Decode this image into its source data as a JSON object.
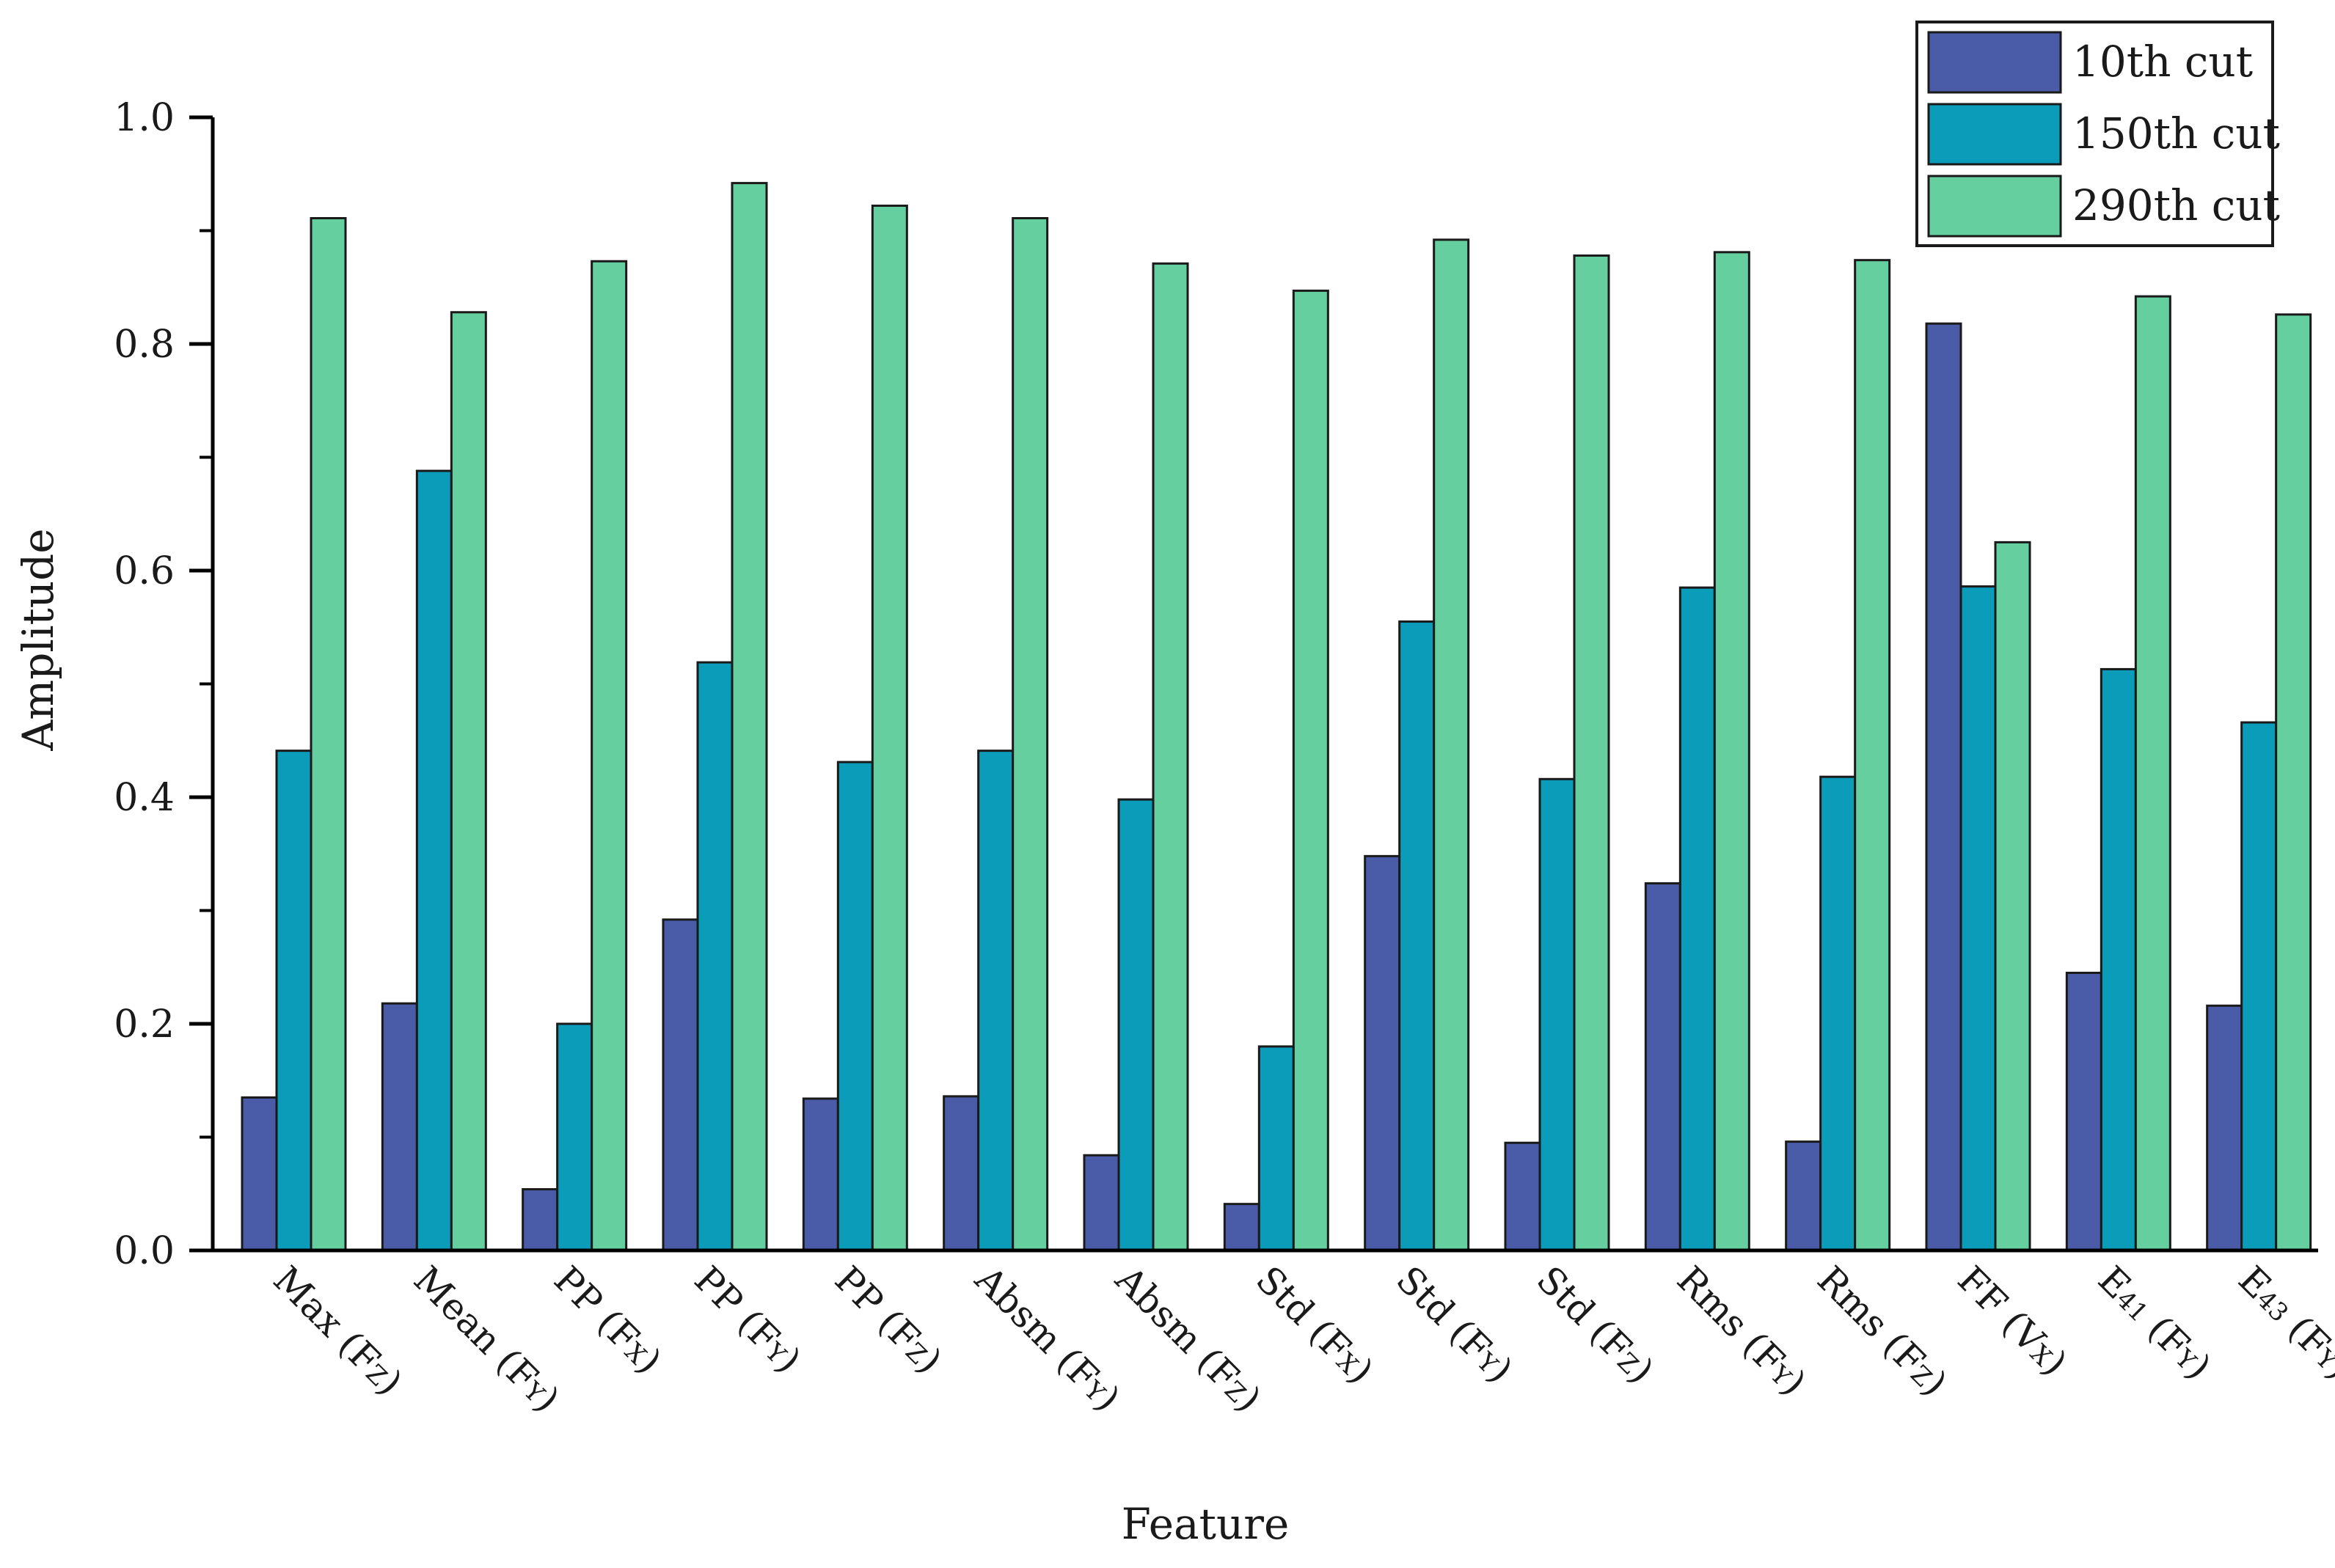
{
  "chart_data": {
    "type": "bar",
    "title": "",
    "xlabel": "Feature",
    "ylabel": "Amplitude",
    "ylim": [
      0,
      1.0
    ],
    "yticks": [
      "0.0",
      "0.2",
      "0.4",
      "0.6",
      "0.8",
      "1.0"
    ],
    "categories": [
      {
        "main": "Max (F",
        "sub": "Z",
        "tail": ")"
      },
      {
        "main": "Mean (F",
        "sub": "Y",
        "tail": ")"
      },
      {
        "main": "PP (F",
        "sub": "X",
        "tail": ")"
      },
      {
        "main": "PP (F",
        "sub": "Y",
        "tail": ")"
      },
      {
        "main": "PP (F",
        "sub": "Z",
        "tail": ")"
      },
      {
        "main": "Absm (F",
        "sub": "Y",
        "tail": ")"
      },
      {
        "main": "Absm (F",
        "sub": "Z",
        "tail": ")"
      },
      {
        "main": "Std (F",
        "sub": "X",
        "tail": ")"
      },
      {
        "main": "Std (F",
        "sub": "Y",
        "tail": ")"
      },
      {
        "main": "Std (F",
        "sub": "Z",
        "tail": ")"
      },
      {
        "main": "Rms (F",
        "sub": "Y",
        "tail": ")"
      },
      {
        "main": "Rms (F",
        "sub": "Z",
        "tail": ")"
      },
      {
        "main": "FF (V",
        "sub": "X",
        "tail": ")"
      },
      {
        "main": "E",
        "sub": "41",
        "tail": " (F",
        "sub2": "Y",
        "tail2": ")"
      },
      {
        "main": "E",
        "sub": "43",
        "tail": " (F",
        "sub2": "Y",
        "tail2": ")"
      }
    ],
    "series": [
      {
        "name": "10th cut",
        "color": "#4a5ca8",
        "values": [
          0.135,
          0.218,
          0.054,
          0.292,
          0.134,
          0.136,
          0.084,
          0.041,
          0.348,
          0.095,
          0.324,
          0.096,
          0.818,
          0.245,
          0.216
        ]
      },
      {
        "name": "150th cut",
        "color": "#0b9cba",
        "values": [
          0.441,
          0.688,
          0.2,
          0.519,
          0.431,
          0.441,
          0.398,
          0.18,
          0.555,
          0.416,
          0.585,
          0.418,
          0.586,
          0.513,
          0.466
        ]
      },
      {
        "name": "290th cut",
        "color": "#66cf9f",
        "values": [
          0.911,
          0.828,
          0.873,
          0.942,
          0.922,
          0.911,
          0.871,
          0.847,
          0.892,
          0.878,
          0.881,
          0.874,
          0.625,
          0.842,
          0.826
        ]
      }
    ],
    "legend_position": "top-right"
  }
}
